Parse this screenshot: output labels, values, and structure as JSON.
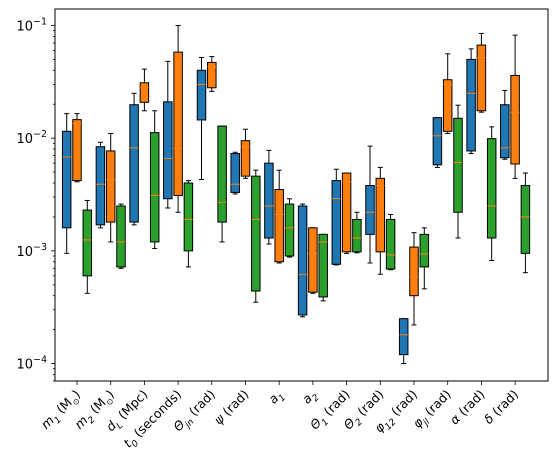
{
  "chart_data": {
    "type": "box",
    "yscale": "log",
    "ylim": [
      7e-05,
      0.14
    ],
    "grid": false,
    "legend": "none",
    "y_tick_labels": [
      {
        "value": 0.0001,
        "label": "10",
        "exp": "−4"
      },
      {
        "value": 0.001,
        "label": "10",
        "exp": "−3"
      },
      {
        "value": 0.01,
        "label": "10",
        "exp": "−2"
      },
      {
        "value": 0.1,
        "label": "10",
        "exp": "−1"
      }
    ],
    "categories": [
      {
        "base": "m",
        "sub": "1",
        "unit": " (M",
        "unitsub": "⊙",
        "close": ")"
      },
      {
        "base": "m",
        "sub": "2",
        "unit": " (M",
        "unitsub": "⊙",
        "close": ")"
      },
      {
        "base": "d",
        "sub": "L",
        "unit": " (Mpc)",
        "unitsub": "",
        "close": ""
      },
      {
        "base": "t",
        "sub": "0",
        "unit": " (seconds)",
        "unitsub": "",
        "close": ""
      },
      {
        "base": "Θ",
        "sub": "jn",
        "unit": " (rad)",
        "unitsub": "",
        "close": ""
      },
      {
        "base": "ψ",
        "sub": "",
        "unit": " (rad)",
        "unitsub": "",
        "close": ""
      },
      {
        "base": "a",
        "sub": "1",
        "unit": "",
        "unitsub": "",
        "close": ""
      },
      {
        "base": "a",
        "sub": "2",
        "unit": "",
        "unitsub": "",
        "close": ""
      },
      {
        "base": "Θ",
        "sub": "1",
        "unit": " (rad)",
        "unitsub": "",
        "close": ""
      },
      {
        "base": "Θ",
        "sub": "2",
        "unit": " (rad)",
        "unitsub": "",
        "close": ""
      },
      {
        "base": "φ",
        "sub": "12",
        "unit": " (rad)",
        "unitsub": "",
        "close": ""
      },
      {
        "base": "φ",
        "sub": "jl",
        "unit": " (rad)",
        "unitsub": "",
        "close": ""
      },
      {
        "base": "α",
        "sub": "",
        "unit": " (rad)",
        "unitsub": "",
        "close": ""
      },
      {
        "base": "δ",
        "sub": "",
        "unit": " (rad)",
        "unitsub": "",
        "close": ""
      }
    ],
    "series": [
      {
        "color": "#1f77b4",
        "boxes": [
          {
            "whislo": 0.00095,
            "q1": 0.0016,
            "med": 0.0068,
            "q3": 0.0115,
            "whishi": 0.0165
          },
          {
            "whislo": 0.0016,
            "q1": 0.0017,
            "med": 0.0039,
            "q3": 0.0084,
            "whishi": 0.0092
          },
          {
            "whislo": 0.0017,
            "q1": 0.0018,
            "med": 0.0082,
            "q3": 0.0198,
            "whishi": 0.025
          },
          {
            "whislo": 0.0024,
            "q1": 0.0029,
            "med": 0.0066,
            "q3": 0.021,
            "whishi": 0.048
          },
          {
            "whislo": 0.0043,
            "q1": 0.0145,
            "med": 0.03,
            "q3": 0.04,
            "whishi": 0.052
          },
          {
            "whislo": 0.0032,
            "q1": 0.0033,
            "med": 0.0039,
            "q3": 0.0073,
            "whishi": 0.0075
          },
          {
            "whislo": 0.00115,
            "q1": 0.0013,
            "med": 0.0025,
            "q3": 0.006,
            "whishi": 0.0078
          },
          {
            "whislo": 0.00026,
            "q1": 0.00027,
            "med": 0.00062,
            "q3": 0.0025,
            "whishi": 0.0026
          },
          {
            "whislo": 0.00075,
            "q1": 0.00076,
            "med": 0.0029,
            "q3": 0.0042,
            "whishi": 0.0053
          },
          {
            "whislo": 0.00078,
            "q1": 0.0014,
            "med": 0.0022,
            "q3": 0.0038,
            "whishi": 0.0085
          },
          {
            "whislo": 0.0001,
            "q1": 0.00012,
            "med": 0.00018,
            "q3": 0.00025,
            "whishi": 0.00025
          },
          {
            "whislo": 0.0055,
            "q1": 0.0058,
            "med": 0.0105,
            "q3": 0.0152,
            "whishi": 0.0152
          },
          {
            "whislo": 0.0073,
            "q1": 0.0077,
            "med": 0.025,
            "q3": 0.05,
            "whishi": 0.062
          },
          {
            "whislo": 0.0065,
            "q1": 0.0067,
            "med": 0.0082,
            "q3": 0.0198,
            "whishi": 0.0265
          }
        ]
      },
      {
        "color": "#ff7f0e",
        "boxes": [
          {
            "whislo": 0.0041,
            "q1": 0.0042,
            "med": 0.0135,
            "q3": 0.0146,
            "whishi": 0.0165
          },
          {
            "whislo": 0.0012,
            "q1": 0.0018,
            "med": 0.0043,
            "q3": 0.0077,
            "whishi": 0.011
          },
          {
            "whislo": 0.0175,
            "q1": 0.0208,
            "med": 0.028,
            "q3": 0.031,
            "whishi": 0.041
          },
          {
            "whislo": 0.0022,
            "q1": 0.0031,
            "med": 0.0081,
            "q3": 0.058,
            "whishi": 0.1
          },
          {
            "whislo": 0.026,
            "q1": 0.028,
            "med": 0.043,
            "q3": 0.047,
            "whishi": 0.053
          },
          {
            "whislo": 0.0044,
            "q1": 0.0046,
            "med": 0.0084,
            "q3": 0.0095,
            "whishi": 0.012
          },
          {
            "whislo": 0.00078,
            "q1": 0.0008,
            "med": 0.0021,
            "q3": 0.0035,
            "whishi": 0.0052
          },
          {
            "whislo": 0.00042,
            "q1": 0.00043,
            "med": 0.00095,
            "q3": 0.0016,
            "whishi": 0.0016
          },
          {
            "whislo": 0.00095,
            "q1": 0.00098,
            "med": 0.0041,
            "q3": 0.0049,
            "whishi": 0.0049
          },
          {
            "whislo": 0.00062,
            "q1": 0.00098,
            "med": 0.0038,
            "q3": 0.0044,
            "whishi": 0.0055
          },
          {
            "whislo": 0.00022,
            "q1": 0.0004,
            "med": 0.00059,
            "q3": 0.00108,
            "whishi": 0.00145
          },
          {
            "whislo": 0.011,
            "q1": 0.0115,
            "med": 0.03,
            "q3": 0.033,
            "whishi": 0.056
          },
          {
            "whislo": 0.017,
            "q1": 0.0175,
            "med": 0.052,
            "q3": 0.067,
            "whishi": 0.085
          },
          {
            "whislo": 0.0044,
            "q1": 0.0059,
            "med": 0.017,
            "q3": 0.036,
            "whishi": 0.082
          }
        ]
      },
      {
        "color": "#2ca02c",
        "boxes": [
          {
            "whislo": 0.00042,
            "q1": 0.0006,
            "med": 0.00125,
            "q3": 0.0023,
            "whishi": 0.0028
          },
          {
            "whislo": 0.0007,
            "q1": 0.00072,
            "med": 0.0012,
            "q3": 0.0025,
            "whishi": 0.0026
          },
          {
            "whislo": 0.00105,
            "q1": 0.0012,
            "med": 0.0031,
            "q3": 0.0112,
            "whishi": 0.0175
          },
          {
            "whislo": 0.00072,
            "q1": 0.001,
            "med": 0.0019,
            "q3": 0.004,
            "whishi": 0.0042
          },
          {
            "whislo": 0.0012,
            "q1": 0.0018,
            "med": 0.0027,
            "q3": 0.0128,
            "whishi": 0.0128
          },
          {
            "whislo": 0.00035,
            "q1": 0.00044,
            "med": 0.0019,
            "q3": 0.0046,
            "whishi": 0.0052
          },
          {
            "whislo": 0.00088,
            "q1": 0.0009,
            "med": 0.0016,
            "q3": 0.0026,
            "whishi": 0.0029
          },
          {
            "whislo": 0.00036,
            "q1": 0.00039,
            "med": 0.0012,
            "q3": 0.0014,
            "whishi": 0.0014
          },
          {
            "whislo": 0.00096,
            "q1": 0.00098,
            "med": 0.0013,
            "q3": 0.0019,
            "whishi": 0.0022
          },
          {
            "whislo": 0.00068,
            "q1": 0.00069,
            "med": 0.00092,
            "q3": 0.0019,
            "whishi": 0.0021
          },
          {
            "whislo": 0.00046,
            "q1": 0.00072,
            "med": 0.00094,
            "q3": 0.0014,
            "whishi": 0.0016
          },
          {
            "whislo": 0.0013,
            "q1": 0.0022,
            "med": 0.0061,
            "q3": 0.015,
            "whishi": 0.0196
          },
          {
            "whislo": 0.00082,
            "q1": 0.0013,
            "med": 0.0025,
            "q3": 0.0099,
            "whishi": 0.0126
          },
          {
            "whislo": 0.00064,
            "q1": 0.00095,
            "med": 0.002,
            "q3": 0.0038,
            "whishi": 0.0049
          }
        ]
      }
    ]
  }
}
